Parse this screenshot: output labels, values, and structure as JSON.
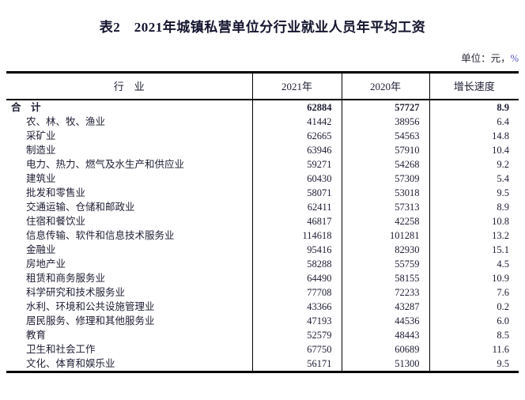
{
  "page": {
    "title": "表2　2021年城镇私营单位分行业就业人员年平均工资",
    "unit_label_prefix": "单位：元，",
    "unit_label_percent": "%"
  },
  "table": {
    "columns": [
      "行　业",
      "2021年",
      "2020年",
      "增长速度"
    ],
    "rows": [
      {
        "industry": "合　计",
        "y2021": "62884",
        "y2020": "57727",
        "growth": "8.9",
        "total": true
      },
      {
        "industry": "农、林、牧、渔业",
        "y2021": "41442",
        "y2020": "38956",
        "growth": "6.4",
        "total": false
      },
      {
        "industry": "采矿业",
        "y2021": "62665",
        "y2020": "54563",
        "growth": "14.8",
        "total": false
      },
      {
        "industry": "制造业",
        "y2021": "63946",
        "y2020": "57910",
        "growth": "10.4",
        "total": false
      },
      {
        "industry": "电力、热力、燃气及水生产和供应业",
        "y2021": "59271",
        "y2020": "54268",
        "growth": "9.2",
        "total": false
      },
      {
        "industry": "建筑业",
        "y2021": "60430",
        "y2020": "57309",
        "growth": "5.4",
        "total": false
      },
      {
        "industry": "批发和零售业",
        "y2021": "58071",
        "y2020": "53018",
        "growth": "9.5",
        "total": false
      },
      {
        "industry": "交通运输、仓储和邮政业",
        "y2021": "62411",
        "y2020": "57313",
        "growth": "8.9",
        "total": false
      },
      {
        "industry": "住宿和餐饮业",
        "y2021": "46817",
        "y2020": "42258",
        "growth": "10.8",
        "total": false
      },
      {
        "industry": "信息传输、软件和信息技术服务业",
        "y2021": "114618",
        "y2020": "101281",
        "growth": "13.2",
        "total": false
      },
      {
        "industry": "金融业",
        "y2021": "95416",
        "y2020": "82930",
        "growth": "15.1",
        "total": false
      },
      {
        "industry": "房地产业",
        "y2021": "58288",
        "y2020": "55759",
        "growth": "4.5",
        "total": false
      },
      {
        "industry": "租赁和商务服务业",
        "y2021": "64490",
        "y2020": "58155",
        "growth": "10.9",
        "total": false
      },
      {
        "industry": "科学研究和技术服务业",
        "y2021": "77708",
        "y2020": "72233",
        "growth": "7.6",
        "total": false
      },
      {
        "industry": "水利、环境和公共设施管理业",
        "y2021": "43366",
        "y2020": "43287",
        "growth": "0.2",
        "total": false
      },
      {
        "industry": "居民服务、修理和其他服务业",
        "y2021": "47193",
        "y2020": "44536",
        "growth": "6.0",
        "total": false
      },
      {
        "industry": "教育",
        "y2021": "52579",
        "y2020": "48443",
        "growth": "8.5",
        "total": false
      },
      {
        "industry": "卫生和社会工作",
        "y2021": "67750",
        "y2020": "60689",
        "growth": "11.6",
        "total": false
      },
      {
        "industry": "文化、体育和娱乐业",
        "y2021": "56171",
        "y2020": "51300",
        "growth": "9.5",
        "total": false
      }
    ]
  }
}
